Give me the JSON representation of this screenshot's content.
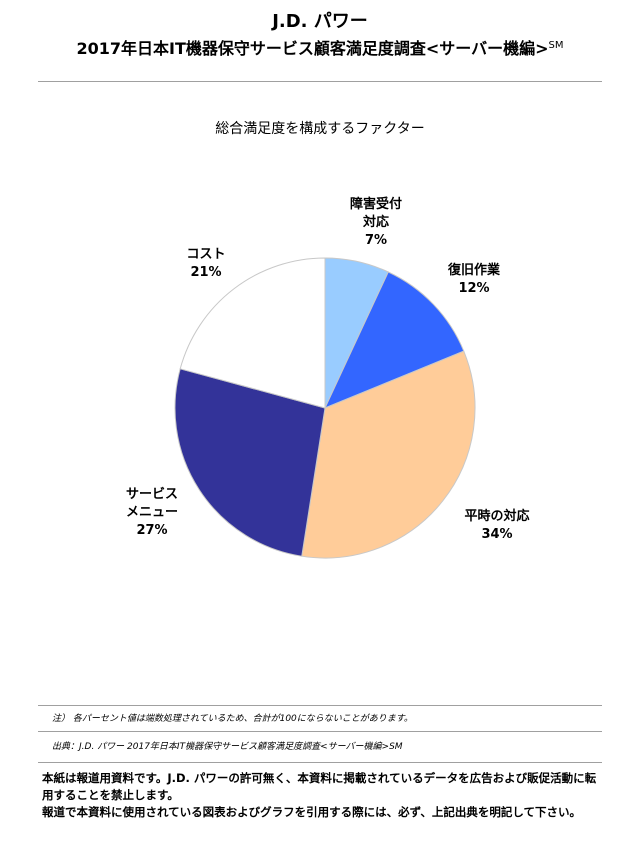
{
  "header": {
    "brand": "J.D. パワー",
    "title": "2017年日本IT機器保守サービス顧客満足度調査<サーバー機編>",
    "title_mark": "SM"
  },
  "chart_data": {
    "type": "pie",
    "title": "総合満足度を構成するファクター",
    "slices": [
      {
        "label": "障害受付対応",
        "label_lines": [
          "障害受付",
          "対応"
        ],
        "value": 7,
        "display": "7%",
        "color": "#99ccff"
      },
      {
        "label": "復旧作業",
        "label_lines": [
          "復旧作業"
        ],
        "value": 12,
        "display": "12%",
        "color": "#3366ff"
      },
      {
        "label": "平時の対応",
        "label_lines": [
          "平時の対応"
        ],
        "value": 34,
        "display": "34%",
        "color": "#ffcc99"
      },
      {
        "label": "サービスメニュー",
        "label_lines": [
          "サービス",
          "メニュー"
        ],
        "value": 27,
        "display": "27%",
        "color": "#333399"
      },
      {
        "label": "コスト",
        "label_lines": [
          "コスト"
        ],
        "value": 21,
        "display": "21%",
        "color": "#ffffff"
      }
    ],
    "start_angle": "12 o'clock, clockwise"
  },
  "notes": {
    "note1": "注） 各パーセント値は端数処理されているため、合計が100にならないことがあります。",
    "source": "出典：J.D. パワー 2017年日本IT機器保守サービス顧客満足度調査<サーバー機編>SM"
  },
  "disclaimer": {
    "line1": "本紙は報道用資料です。J.D. パワーの許可無く、本資料に掲載されているデータを広告および販促活動に転用することを禁止します。",
    "line2": "報道で本資料に使用されている図表およびグラフを引用する際には、必ず、上記出典を明記して下さい。"
  }
}
